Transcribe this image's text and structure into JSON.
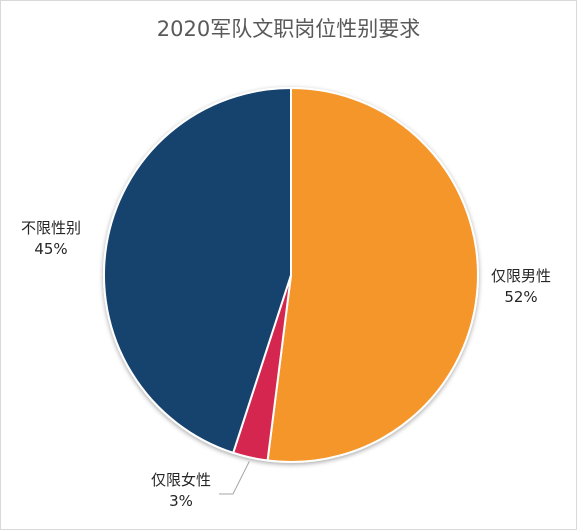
{
  "chart_data": {
    "type": "pie",
    "title": "2020军队文职岗位性别要求",
    "categories": [
      "仅限男性",
      "仅限女性",
      "不限性别"
    ],
    "values": [
      52,
      3,
      45
    ],
    "value_labels": [
      "52%",
      "3%",
      "45%"
    ],
    "colors": [
      "#F5962A",
      "#D4284F",
      "#17426E"
    ],
    "legend": "none"
  }
}
